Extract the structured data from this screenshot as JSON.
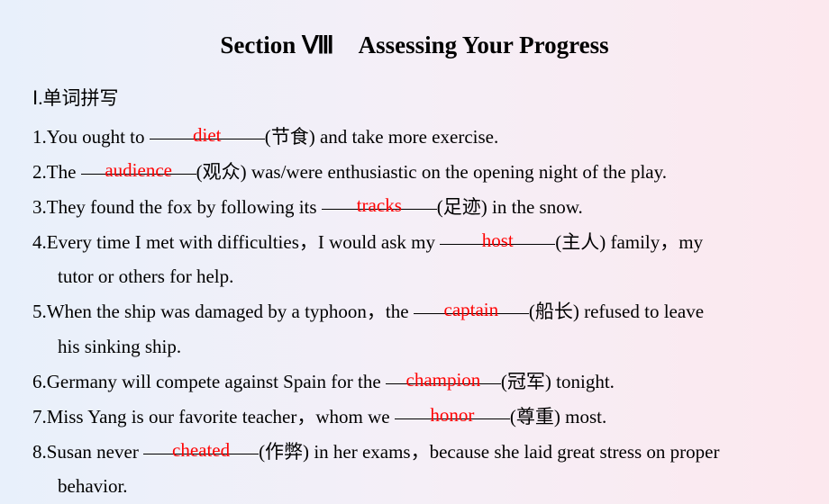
{
  "title": "Section Ⅷ　Assessing Your Progress",
  "section_label": "Ⅰ.单词拼写",
  "colors": {
    "text": "#000000",
    "answer": "#ff0000",
    "bg_left": "#e8f0fb",
    "bg_mid": "#f5eff7",
    "bg_right": "#fce8ee",
    "underline": "#000000"
  },
  "typography": {
    "title_fontsize": 27,
    "body_fontsize": 21,
    "title_weight": "bold",
    "body_weight": "normal",
    "line_height": 1.85,
    "font_family": "Times New Roman"
  },
  "items": [
    {
      "num": "1.",
      "pre": "You ought to ",
      "answer": "diet",
      "hint": "(节食)",
      "post": " and take more exercise."
    },
    {
      "num": "2.",
      "pre": "The ",
      "answer": "audience",
      "hint": "(观众)",
      "post": " was/were enthusiastic on the opening night of the play."
    },
    {
      "num": "3.",
      "pre": "They found the fox by following its ",
      "answer": "tracks",
      "hint": "(足迹)",
      "post": " in the snow."
    },
    {
      "num": "4.",
      "pre": "Every time I met with difficulties，I would ask my ",
      "answer": "host",
      "hint": "(主人)",
      "post": " family，my",
      "cont": "tutor or others for help."
    },
    {
      "num": "5.",
      "pre": "When the ship was damaged by a typhoon，the ",
      "answer": "captain",
      "hint": "(船长)",
      "post": " refused to leave",
      "cont": "his sinking ship."
    },
    {
      "num": "6.",
      "pre": "Germany will compete against Spain for the ",
      "answer": "champion",
      "hint": "(冠军)",
      "post": " tonight."
    },
    {
      "num": "7.",
      "pre": "Miss Yang is our favorite teacher，whom we ",
      "answer": "honor",
      "hint": "(尊重)",
      "post": " most."
    },
    {
      "num": "8.",
      "pre": "Susan never ",
      "answer": "cheated",
      "hint": "(作弊)",
      "post": " in her exams，because she laid great stress on proper",
      "cont": "behavior."
    }
  ]
}
